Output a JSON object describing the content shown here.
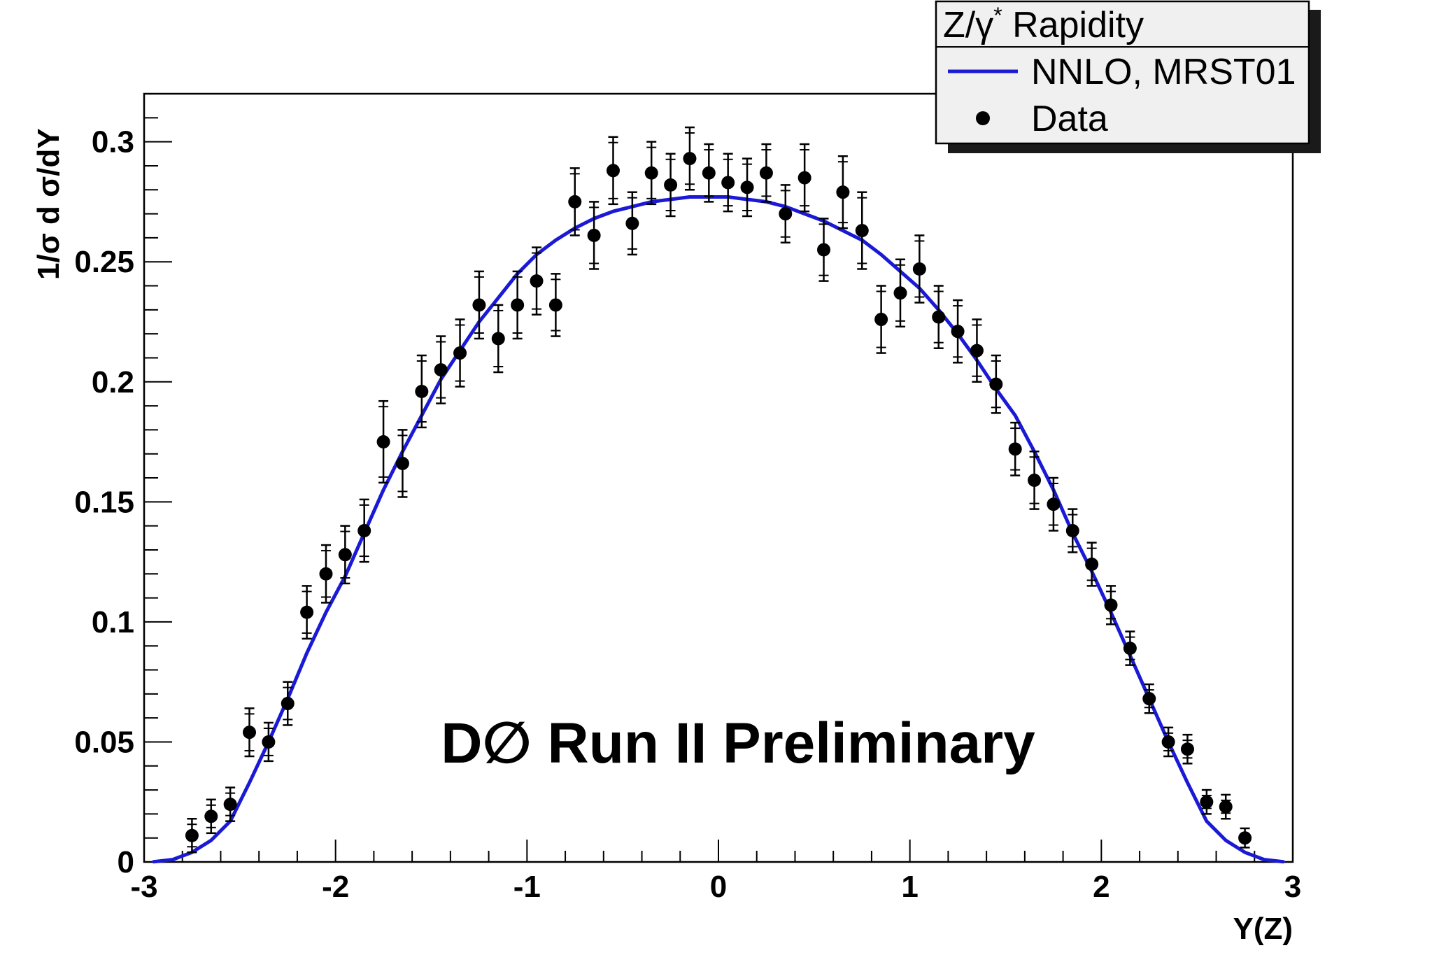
{
  "chart_data": {
    "type": "scatter",
    "xlabel": "Y(Z)",
    "ylabel": "1/σ  d σ/dY",
    "xlim": [
      -3,
      3
    ],
    "ylim": [
      0,
      0.32
    ],
    "xticks": [
      -3,
      -2,
      -1,
      0,
      1,
      2,
      3
    ],
    "xtick_labels": [
      "-3",
      "-2",
      "-1",
      "0",
      "1",
      "2",
      "3"
    ],
    "yticks": [
      0,
      0.05,
      0.1,
      0.15,
      0.2,
      0.25,
      0.3
    ],
    "ytick_labels": [
      "0",
      "0.05",
      "0.1",
      "0.15",
      "0.2",
      "0.25",
      "0.3"
    ],
    "grid": false,
    "legend_position": "top-right",
    "annotation": "D∅ Run II Preliminary",
    "colors": {
      "theory": "#1a1ad6",
      "data": "#000000"
    },
    "legend": {
      "header_main": "Z/γ",
      "header_sup": "*",
      "header_rest": " Rapidity",
      "entries": [
        {
          "label": "NNLO, MRST01",
          "kind": "line"
        },
        {
          "label": "Data",
          "kind": "marker"
        }
      ]
    },
    "series": [
      {
        "name": "NNLO, MRST01",
        "kind": "line",
        "x": [
          -2.95,
          -2.85,
          -2.75,
          -2.65,
          -2.55,
          -2.45,
          -2.35,
          -2.25,
          -2.15,
          -2.05,
          -1.95,
          -1.85,
          -1.75,
          -1.65,
          -1.55,
          -1.45,
          -1.35,
          -1.25,
          -1.15,
          -1.05,
          -0.95,
          -0.85,
          -0.75,
          -0.65,
          -0.55,
          -0.45,
          -0.35,
          -0.25,
          -0.15,
          -0.05,
          0.05,
          0.15,
          0.25,
          0.35,
          0.45,
          0.55,
          0.65,
          0.75,
          0.85,
          0.95,
          1.05,
          1.15,
          1.25,
          1.35,
          1.45,
          1.55,
          1.65,
          1.75,
          1.85,
          1.95,
          2.05,
          2.15,
          2.25,
          2.35,
          2.45,
          2.55,
          2.65,
          2.75,
          2.85,
          2.95
        ],
        "y": [
          0.0001,
          0.001,
          0.004,
          0.009,
          0.017,
          0.033,
          0.05,
          0.068,
          0.087,
          0.104,
          0.119,
          0.137,
          0.155,
          0.171,
          0.186,
          0.201,
          0.213,
          0.225,
          0.235,
          0.245,
          0.253,
          0.259,
          0.264,
          0.268,
          0.271,
          0.273,
          0.275,
          0.276,
          0.277,
          0.277,
          0.277,
          0.276,
          0.275,
          0.273,
          0.27,
          0.267,
          0.263,
          0.259,
          0.253,
          0.246,
          0.239,
          0.23,
          0.22,
          0.209,
          0.197,
          0.186,
          0.171,
          0.155,
          0.137,
          0.121,
          0.104,
          0.086,
          0.068,
          0.05,
          0.033,
          0.017,
          0.009,
          0.004,
          0.001,
          0.0001
        ]
      },
      {
        "name": "Data",
        "kind": "points",
        "x": [
          -2.75,
          -2.65,
          -2.55,
          -2.45,
          -2.35,
          -2.25,
          -2.15,
          -2.05,
          -1.95,
          -1.85,
          -1.75,
          -1.65,
          -1.55,
          -1.45,
          -1.35,
          -1.25,
          -1.15,
          -1.05,
          -0.95,
          -0.85,
          -0.75,
          -0.65,
          -0.55,
          -0.45,
          -0.35,
          -0.25,
          -0.15,
          -0.05,
          0.05,
          0.15,
          0.25,
          0.35,
          0.45,
          0.55,
          0.65,
          0.75,
          0.85,
          0.95,
          1.05,
          1.15,
          1.25,
          1.35,
          1.45,
          1.55,
          1.65,
          1.75,
          1.85,
          1.95,
          2.05,
          2.15,
          2.25,
          2.35,
          2.45,
          2.55,
          2.65,
          2.75
        ],
        "y": [
          0.011,
          0.019,
          0.024,
          0.054,
          0.05,
          0.066,
          0.104,
          0.12,
          0.128,
          0.138,
          0.175,
          0.166,
          0.196,
          0.205,
          0.212,
          0.232,
          0.218,
          0.232,
          0.242,
          0.232,
          0.275,
          0.261,
          0.288,
          0.266,
          0.287,
          0.282,
          0.293,
          0.287,
          0.283,
          0.281,
          0.287,
          0.27,
          0.285,
          0.255,
          0.279,
          0.263,
          0.226,
          0.237,
          0.247,
          0.227,
          0.221,
          0.213,
          0.199,
          0.172,
          0.159,
          0.149,
          0.138,
          0.124,
          0.107,
          0.089,
          0.068,
          0.05,
          0.047,
          0.025,
          0.023,
          0.01
        ],
        "yerr": [
          0.007,
          0.007,
          0.007,
          0.01,
          0.008,
          0.009,
          0.011,
          0.012,
          0.012,
          0.013,
          0.017,
          0.014,
          0.015,
          0.014,
          0.014,
          0.014,
          0.014,
          0.014,
          0.014,
          0.013,
          0.014,
          0.014,
          0.014,
          0.013,
          0.013,
          0.013,
          0.013,
          0.012,
          0.012,
          0.012,
          0.012,
          0.012,
          0.014,
          0.013,
          0.015,
          0.016,
          0.014,
          0.014,
          0.014,
          0.013,
          0.013,
          0.013,
          0.012,
          0.011,
          0.012,
          0.011,
          0.009,
          0.009,
          0.008,
          0.007,
          0.006,
          0.006,
          0.006,
          0.005,
          0.005,
          0.004
        ]
      }
    ]
  }
}
